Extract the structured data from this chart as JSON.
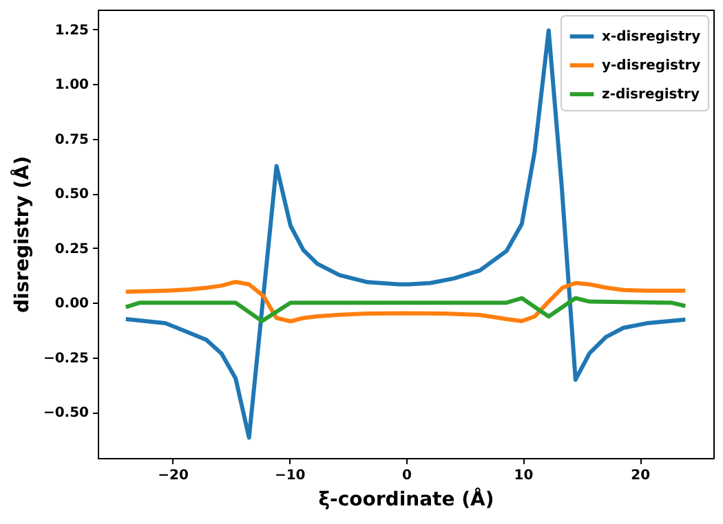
{
  "chart_data": {
    "type": "line",
    "xlabel": "ξ-coordinate (Å)",
    "ylabel": "disregistry (Å)",
    "xlim": [
      -26.4,
      26.3
    ],
    "ylim": [
      -0.71,
      1.34
    ],
    "xticks": [
      {
        "value": -20,
        "label": "−20"
      },
      {
        "value": -10,
        "label": "−10"
      },
      0,
      10,
      20
    ],
    "yticks": [
      {
        "value": -0.5,
        "label": "−0.50"
      },
      {
        "value": -0.25,
        "label": "−0.25"
      },
      {
        "value": 0,
        "label": "0.00"
      },
      {
        "value": 0.25,
        "label": "0.25"
      },
      {
        "value": 0.5,
        "label": "0.50"
      },
      {
        "value": 0.75,
        "label": "0.75"
      },
      {
        "value": 1,
        "label": "1.00"
      },
      {
        "value": 1.25,
        "label": "1.25"
      }
    ],
    "grid": false,
    "legend": "top right",
    "marker": "none",
    "line_style": "solid",
    "series": [
      {
        "name": "x-disregistry",
        "color": "#1f77b4",
        "x": [
          -24,
          -20.6,
          -18.6,
          -17.1,
          -15.8,
          -14.6,
          -13.45,
          -11.1,
          -9.9,
          -8.8,
          -7.6,
          -5.7,
          -3.3,
          -0.6,
          0.2,
          2.1,
          4.1,
          6.3,
          8.6,
          9.9,
          11.0,
          12.2,
          13.3,
          14.5,
          15.7,
          17.1,
          18.6,
          20.6,
          23.9
        ],
        "values": [
          -0.075,
          -0.094,
          -0.137,
          -0.17,
          -0.233,
          -0.346,
          -0.617,
          0.625,
          0.352,
          0.241,
          0.178,
          0.126,
          0.094,
          0.084,
          0.084,
          0.09,
          0.111,
          0.147,
          0.237,
          0.36,
          0.69,
          1.245,
          0.545,
          -0.352,
          -0.231,
          -0.157,
          -0.115,
          -0.094,
          -0.077
        ]
      },
      {
        "name": "y-disregistry",
        "color": "#ff7f0e",
        "x": [
          -24,
          -20.6,
          -18.6,
          -17.1,
          -15.8,
          -14.6,
          -13.45,
          -12.2,
          -11.1,
          -9.9,
          -8.8,
          -7.6,
          -5.7,
          -3.3,
          0,
          3.3,
          6.3,
          8.6,
          9.9,
          11.0,
          12.2,
          13.4,
          14.5,
          15.7,
          17.1,
          18.6,
          20.6,
          23.9
        ],
        "values": [
          0.05,
          0.055,
          0.06,
          0.068,
          0.078,
          0.095,
          0.084,
          0.03,
          -0.07,
          -0.085,
          -0.07,
          -0.062,
          -0.055,
          -0.05,
          -0.048,
          -0.05,
          -0.056,
          -0.075,
          -0.084,
          -0.063,
          0.005,
          0.069,
          0.09,
          0.084,
          0.069,
          0.058,
          0.055,
          0.055
        ]
      },
      {
        "name": "z-disregistry",
        "color": "#2ca02c",
        "x": [
          -24,
          -22.8,
          -14.6,
          -12.35,
          -9.9,
          8.6,
          9.9,
          12.2,
          14.5,
          15.7,
          22.7,
          23.9
        ],
        "values": [
          -0.02,
          0,
          0,
          -0.084,
          0,
          0,
          0.021,
          -0.063,
          0.021,
          0.005,
          0,
          -0.015
        ]
      }
    ]
  }
}
